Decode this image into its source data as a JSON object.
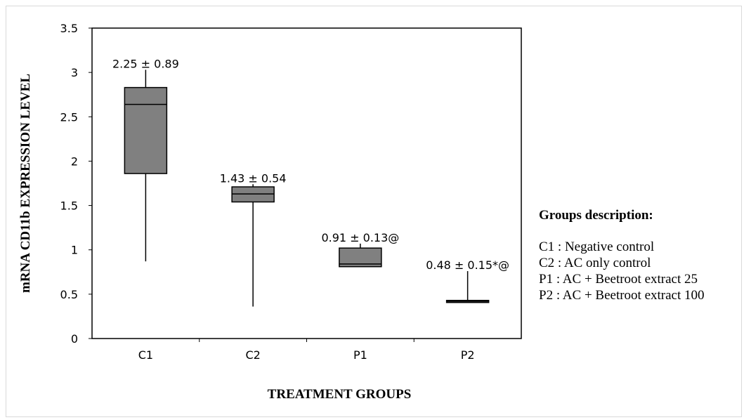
{
  "chart_data": {
    "type": "box",
    "xlabel": "TREATMENT GROUPS",
    "ylabel": "mRNA CD11b EXPRESSION LEVEL",
    "ylim": [
      0,
      3.5
    ],
    "y_ticks": [
      "0",
      "0.5",
      "1",
      "1.5",
      "2",
      "2.5",
      "3",
      "3.5"
    ],
    "categories": [
      "C1",
      "C2",
      "P1",
      "P2"
    ],
    "boxes": [
      {
        "group": "C1",
        "min": 0.87,
        "q1": 1.86,
        "median": 2.64,
        "q3": 2.83,
        "max": 3.03,
        "label": "2.25 ± 0.89"
      },
      {
        "group": "C2",
        "min": 0.36,
        "q1": 1.54,
        "median": 1.63,
        "q3": 1.71,
        "max": 1.74,
        "label": "1.43 ± 0.54"
      },
      {
        "group": "P1",
        "min": 0.81,
        "q1": 0.81,
        "median": 0.84,
        "q3": 1.02,
        "max": 1.07,
        "label": "0.91 ± 0.13@"
      },
      {
        "group": "P2",
        "min": 0.41,
        "q1": 0.41,
        "median": 0.42,
        "q3": 0.43,
        "max": 0.76,
        "label": "0.48 ± 0.15*@"
      }
    ],
    "colors": {
      "box_fill": "#808080",
      "line": "#000000"
    },
    "grid": false
  },
  "legend": {
    "title": "Groups description:",
    "items": [
      "C1 :  Negative control",
      "C2 : AC only control",
      "P1 : AC + Beetroot extract 25",
      "P2 : AC + Beetroot extract 100"
    ]
  }
}
